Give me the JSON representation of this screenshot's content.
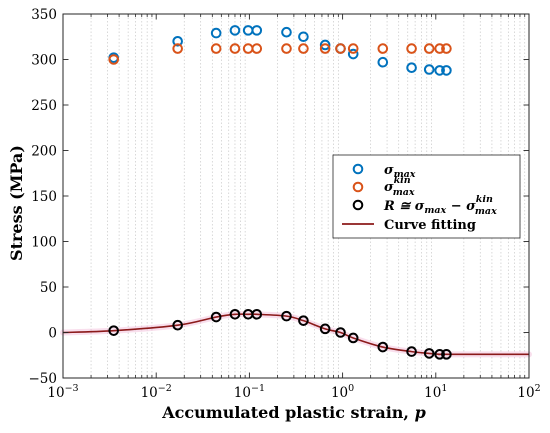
{
  "chart_data": {
    "type": "scatter",
    "xlabel_text": "Accumulated plastic strain, ",
    "xlabel_var": "p",
    "ylabel": "Stress (MPa)",
    "xscale": "log",
    "xlim": [
      0.001,
      100
    ],
    "ylim": [
      -50,
      350
    ],
    "grid": "x-minor",
    "legend_position": "center-right",
    "y_ticks": [
      -50,
      0,
      50,
      100,
      150,
      200,
      250,
      300,
      350
    ],
    "y_tick_labels": [
      "−50",
      "0",
      "50",
      "100",
      "150",
      "200",
      "250",
      "300",
      "350"
    ],
    "x_ticks": [
      0.001,
      0.01,
      0.1,
      1,
      10,
      100
    ],
    "x_tick_labels": [
      {
        "base": "10",
        "exp": "−3"
      },
      {
        "base": "10",
        "exp": "−2"
      },
      {
        "base": "10",
        "exp": "−1"
      },
      {
        "base": "10",
        "exp": "0"
      },
      {
        "base": "10",
        "exp": "1"
      },
      {
        "base": "10",
        "exp": "2"
      }
    ],
    "x": [
      0.0035,
      0.017,
      0.044,
      0.07,
      0.097,
      0.12,
      0.25,
      0.38,
      0.65,
      0.95,
      1.3,
      2.7,
      5.5,
      8.5,
      11,
      13
    ],
    "series": [
      {
        "name": "σ_max",
        "legend_main": "σ",
        "legend_sub": "max",
        "legend_sup": "",
        "color": "#0072BD",
        "values": [
          302,
          320,
          329,
          332,
          332,
          332,
          330,
          325,
          316,
          312,
          306,
          297,
          291,
          289,
          288,
          288
        ]
      },
      {
        "name": "σ_max^kin",
        "legend_main": "σ",
        "legend_sub": "max",
        "legend_sup": "kin",
        "color": "#D95319",
        "values": [
          300,
          312,
          312,
          312,
          312,
          312,
          312,
          312,
          312,
          312,
          312,
          312,
          312,
          312,
          312,
          312
        ]
      },
      {
        "name": "R ≅ σ_max − σ_max^kin",
        "legend_main": "R ≅ σ",
        "legend_mid": " − σ",
        "legend_sub": "max",
        "legend_sup": "kin",
        "color": "#000000",
        "values": [
          2,
          8,
          17,
          20,
          20,
          20,
          18,
          13,
          4,
          0,
          -6,
          -16,
          -21,
          -23,
          -24,
          -24
        ]
      }
    ],
    "fit": {
      "name": "Curve fitting",
      "color": "#8B1A1A",
      "band_color": "#F2B8D8"
    }
  }
}
